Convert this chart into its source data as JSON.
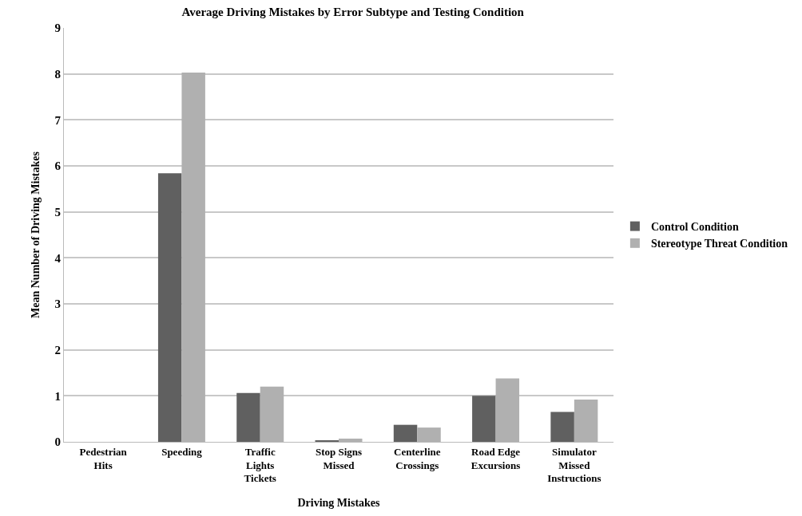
{
  "chart_data": {
    "type": "bar",
    "title": "Average Driving Mistakes by Error Subtype and Testing Condition",
    "xlabel": "Driving Mistakes",
    "ylabel": "Mean Number of Driving Mistakes",
    "categories": [
      "Pedestrian\nHits",
      "Speeding",
      "Traffic\nLights\nTickets",
      "Stop Signs\nMissed",
      "Centerline\nCrossings",
      "Road Edge\nExcursions",
      "Simulator\nMissed\nInstructions"
    ],
    "series": [
      {
        "name": "Control Condition",
        "color": "#606060",
        "values": [
          0,
          5.84,
          1.06,
          0.02,
          0.37,
          1.0,
          0.65
        ]
      },
      {
        "name": "Stereotype Threat Condition",
        "color": "#b0b0b0",
        "values": [
          0,
          8.03,
          1.2,
          0.07,
          0.31,
          1.38,
          0.92
        ]
      }
    ],
    "ylim": [
      0,
      9
    ],
    "yticks": [
      0,
      1,
      2,
      3,
      4,
      5,
      6,
      7,
      8,
      9
    ],
    "grid": "y",
    "legend": "right"
  }
}
